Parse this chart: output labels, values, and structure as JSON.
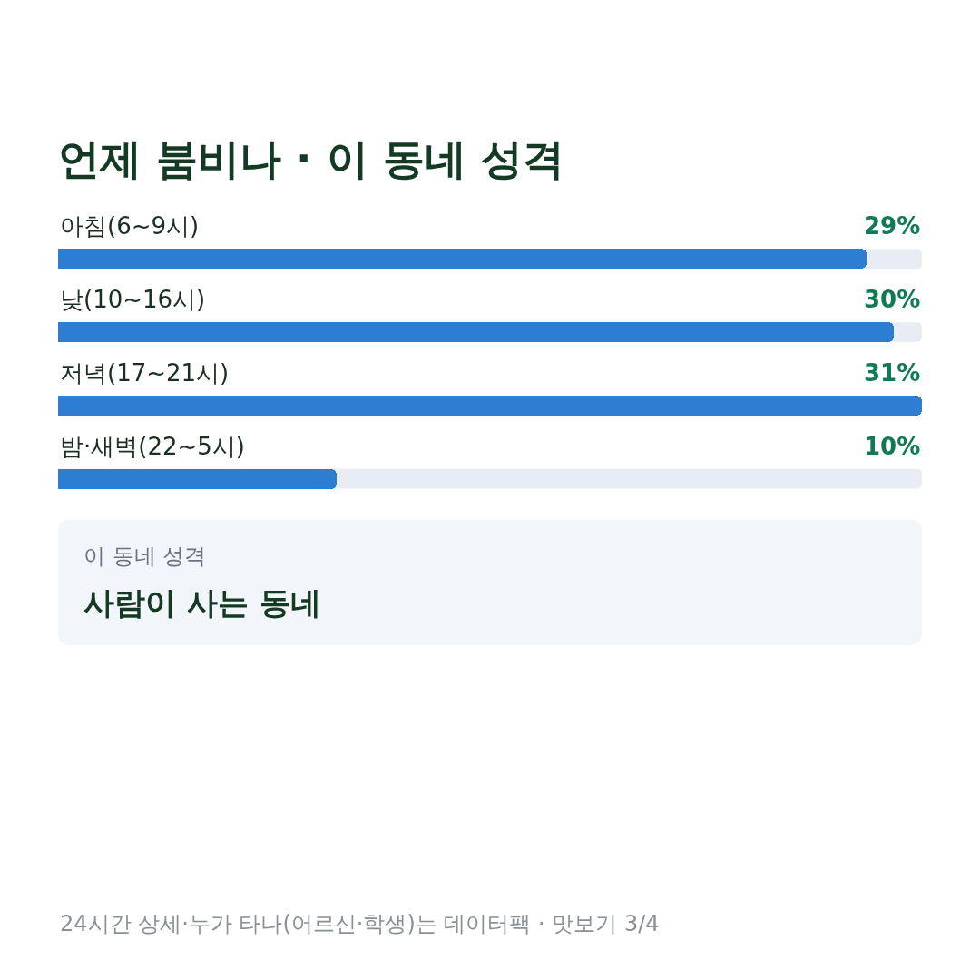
{
  "chart_data": {
    "type": "bar",
    "orientation": "horizontal",
    "title": "언제 붐비나 · 이 동네 성격",
    "categories": [
      "아침(6~9시)",
      "낮(10~16시)",
      "저녁(17~21시)",
      "밤·새벽(22~5시)"
    ],
    "values": [
      29,
      30,
      31,
      10
    ],
    "value_labels": [
      "29%",
      "30%",
      "31%",
      "10%"
    ],
    "color": "#2d7dd2",
    "xlim": [
      0,
      31
    ],
    "tick_labels": "y",
    "annotations": [
      "이 동네 성격",
      "사람이 사는 동네",
      "24시간 상세·누가 타나(어르신·학생)는 데이터팩 · 맛보기 3/4"
    ]
  }
}
